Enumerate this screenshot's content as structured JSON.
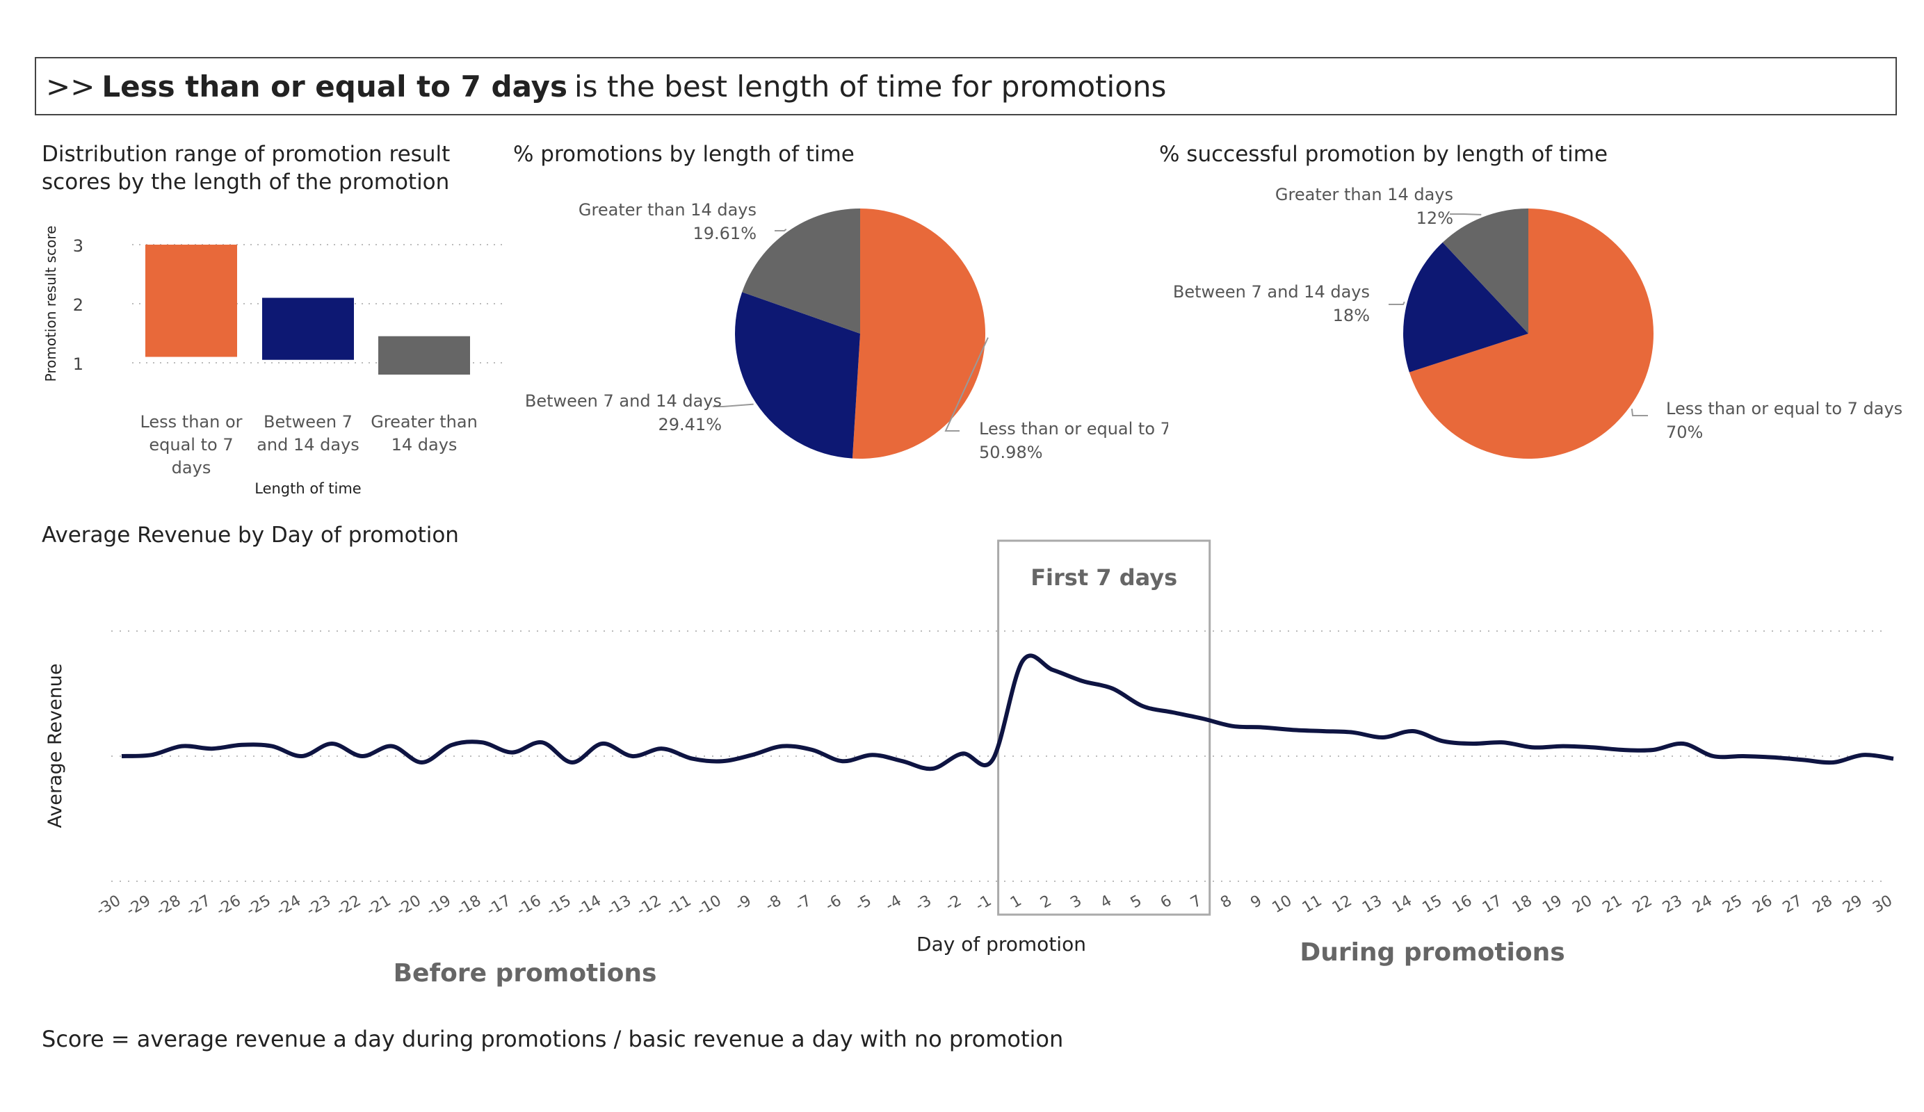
{
  "headline": {
    "prefix": ">>",
    "bold": "Less than or equal to 7 days",
    "rest": "is the best length of time for promotions"
  },
  "footnote": "Score  = average revenue a day during promotions /  basic revenue a day with no promotion",
  "colors": {
    "orange": "#E8693A",
    "navy": "#0D1873",
    "gray": "#666666",
    "line": "#0E1442"
  },
  "chart_data": [
    {
      "type": "bar",
      "title": "Distribution range of promotion result scores by the length of the promotion",
      "title_lines": [
        "Distribution range of promotion result",
        "scores by the length of the promotion"
      ],
      "xlabel": "Length of time",
      "ylabel": "Promotion result score",
      "categories": [
        "Less than or equal to 7 days",
        "Between 7 and 14 days",
        "Greater than 14 days"
      ],
      "category_lines": [
        [
          "Less than or",
          "equal to 7",
          "days"
        ],
        [
          "Between 7",
          "and 14 days"
        ],
        [
          "Greater than",
          "14 days"
        ]
      ],
      "ranges": [
        [
          1.1,
          3.0
        ],
        [
          1.05,
          2.1
        ],
        [
          0.8,
          1.45
        ]
      ],
      "yticks": [
        1,
        2,
        3
      ],
      "ylim": [
        0.6,
        3.2
      ],
      "grid": true
    },
    {
      "type": "pie",
      "title": "% promotions by length of time",
      "slices": [
        {
          "label": "Less than or equal to 7",
          "value": 50.98,
          "value_label": "50.98%"
        },
        {
          "label": "Between 7 and 14 days",
          "value": 29.41,
          "value_label": "29.41%"
        },
        {
          "label": "Greater than 14 days",
          "value": 19.61,
          "value_label": "19.61%"
        }
      ]
    },
    {
      "type": "pie",
      "title": "% successful promotion by length of time",
      "slices": [
        {
          "label": "Less than or equal to 7 days",
          "value": 70,
          "value_label": "70%"
        },
        {
          "label": "Between 7 and 14 days",
          "value": 18,
          "value_label": "18%"
        },
        {
          "label": "Greater than 14 days",
          "value": 12,
          "value_label": "12%"
        }
      ]
    },
    {
      "type": "line",
      "title": "Average Revenue by Day of promotion",
      "xlabel": "Day of promotion",
      "ylabel": "Average Revenue",
      "x": [
        -30,
        -29,
        -28,
        -27,
        -26,
        -25,
        -24,
        -23,
        -22,
        -21,
        -20,
        -19,
        -18,
        -17,
        -16,
        -15,
        -14,
        -13,
        -12,
        -11,
        -10,
        -9,
        -8,
        -7,
        -6,
        -5,
        -4,
        -3,
        -2,
        -1,
        1,
        2,
        3,
        4,
        5,
        6,
        7,
        8,
        9,
        10,
        11,
        12,
        13,
        14,
        15,
        16,
        17,
        18,
        19,
        20,
        21,
        22,
        23,
        24,
        25,
        26,
        27,
        28,
        29,
        30
      ],
      "y": [
        0.0,
        0.01,
        0.08,
        0.06,
        0.09,
        0.08,
        0.0,
        0.1,
        0.0,
        0.08,
        -0.05,
        0.09,
        0.11,
        0.03,
        0.11,
        -0.05,
        0.1,
        0.0,
        0.06,
        -0.02,
        -0.04,
        0.01,
        0.08,
        0.05,
        -0.04,
        0.01,
        -0.04,
        -0.1,
        0.02,
        -0.03,
        0.76,
        0.69,
        0.6,
        0.54,
        0.4,
        0.35,
        0.3,
        0.24,
        0.23,
        0.21,
        0.2,
        0.19,
        0.15,
        0.2,
        0.12,
        0.1,
        0.11,
        0.07,
        0.08,
        0.07,
        0.05,
        0.05,
        0.1,
        0.0,
        0.0,
        -0.01,
        -0.03,
        -0.05,
        0.01,
        -0.02
      ],
      "ylim": [
        -1.0,
        1.0
      ],
      "annotation_box": {
        "label": "First 7 days",
        "from": 1,
        "to": 7
      },
      "region_labels": {
        "before": "Before promotions",
        "during": "During promotions"
      },
      "grid": true
    }
  ]
}
